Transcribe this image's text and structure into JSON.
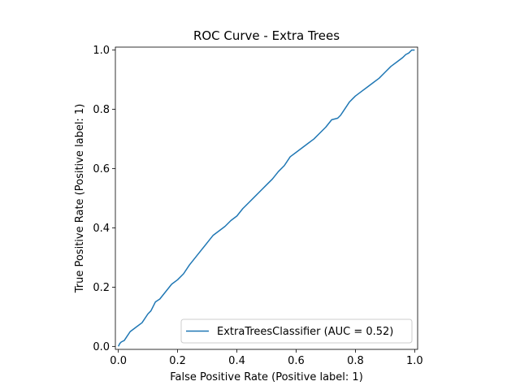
{
  "chart_data": {
    "type": "line",
    "title": "ROC Curve - Extra Trees",
    "xlabel": "False Positive Rate (Positive label: 1)",
    "ylabel": "True Positive Rate (Positive label: 1)",
    "xlim": [
      -0.01,
      1.01
    ],
    "ylim": [
      -0.01,
      1.01
    ],
    "xticks": [
      "0.0",
      "0.2",
      "0.4",
      "0.6",
      "0.8",
      "1.0"
    ],
    "yticks": [
      "0.0",
      "0.2",
      "0.4",
      "0.6",
      "0.8",
      "1.0"
    ],
    "grid": false,
    "legend_position": "lower-right",
    "series": [
      {
        "name": "ExtraTreesClassifier (AUC = 0.52)",
        "color": "#1f77b4",
        "x": [
          0.0,
          0.005,
          0.01,
          0.02,
          0.03,
          0.04,
          0.06,
          0.08,
          0.1,
          0.11,
          0.12,
          0.125,
          0.14,
          0.16,
          0.18,
          0.2,
          0.22,
          0.24,
          0.26,
          0.28,
          0.3,
          0.32,
          0.34,
          0.36,
          0.38,
          0.4,
          0.42,
          0.44,
          0.46,
          0.48,
          0.5,
          0.52,
          0.54,
          0.56,
          0.58,
          0.6,
          0.62,
          0.64,
          0.66,
          0.68,
          0.7,
          0.72,
          0.74,
          0.75,
          0.76,
          0.78,
          0.79,
          0.8,
          0.82,
          0.84,
          0.86,
          0.88,
          0.9,
          0.92,
          0.94,
          0.96,
          0.97,
          0.98,
          0.99,
          1.0
        ],
        "y": [
          0.0,
          0.01,
          0.015,
          0.02,
          0.035,
          0.05,
          0.065,
          0.08,
          0.11,
          0.12,
          0.14,
          0.15,
          0.16,
          0.185,
          0.21,
          0.225,
          0.245,
          0.275,
          0.3,
          0.325,
          0.35,
          0.375,
          0.39,
          0.405,
          0.425,
          0.44,
          0.465,
          0.485,
          0.505,
          0.525,
          0.545,
          0.565,
          0.59,
          0.61,
          0.64,
          0.655,
          0.67,
          0.685,
          0.7,
          0.72,
          0.74,
          0.765,
          0.77,
          0.78,
          0.795,
          0.825,
          0.835,
          0.845,
          0.86,
          0.875,
          0.89,
          0.905,
          0.925,
          0.945,
          0.96,
          0.975,
          0.985,
          0.99,
          1.0,
          1.0
        ]
      }
    ]
  }
}
